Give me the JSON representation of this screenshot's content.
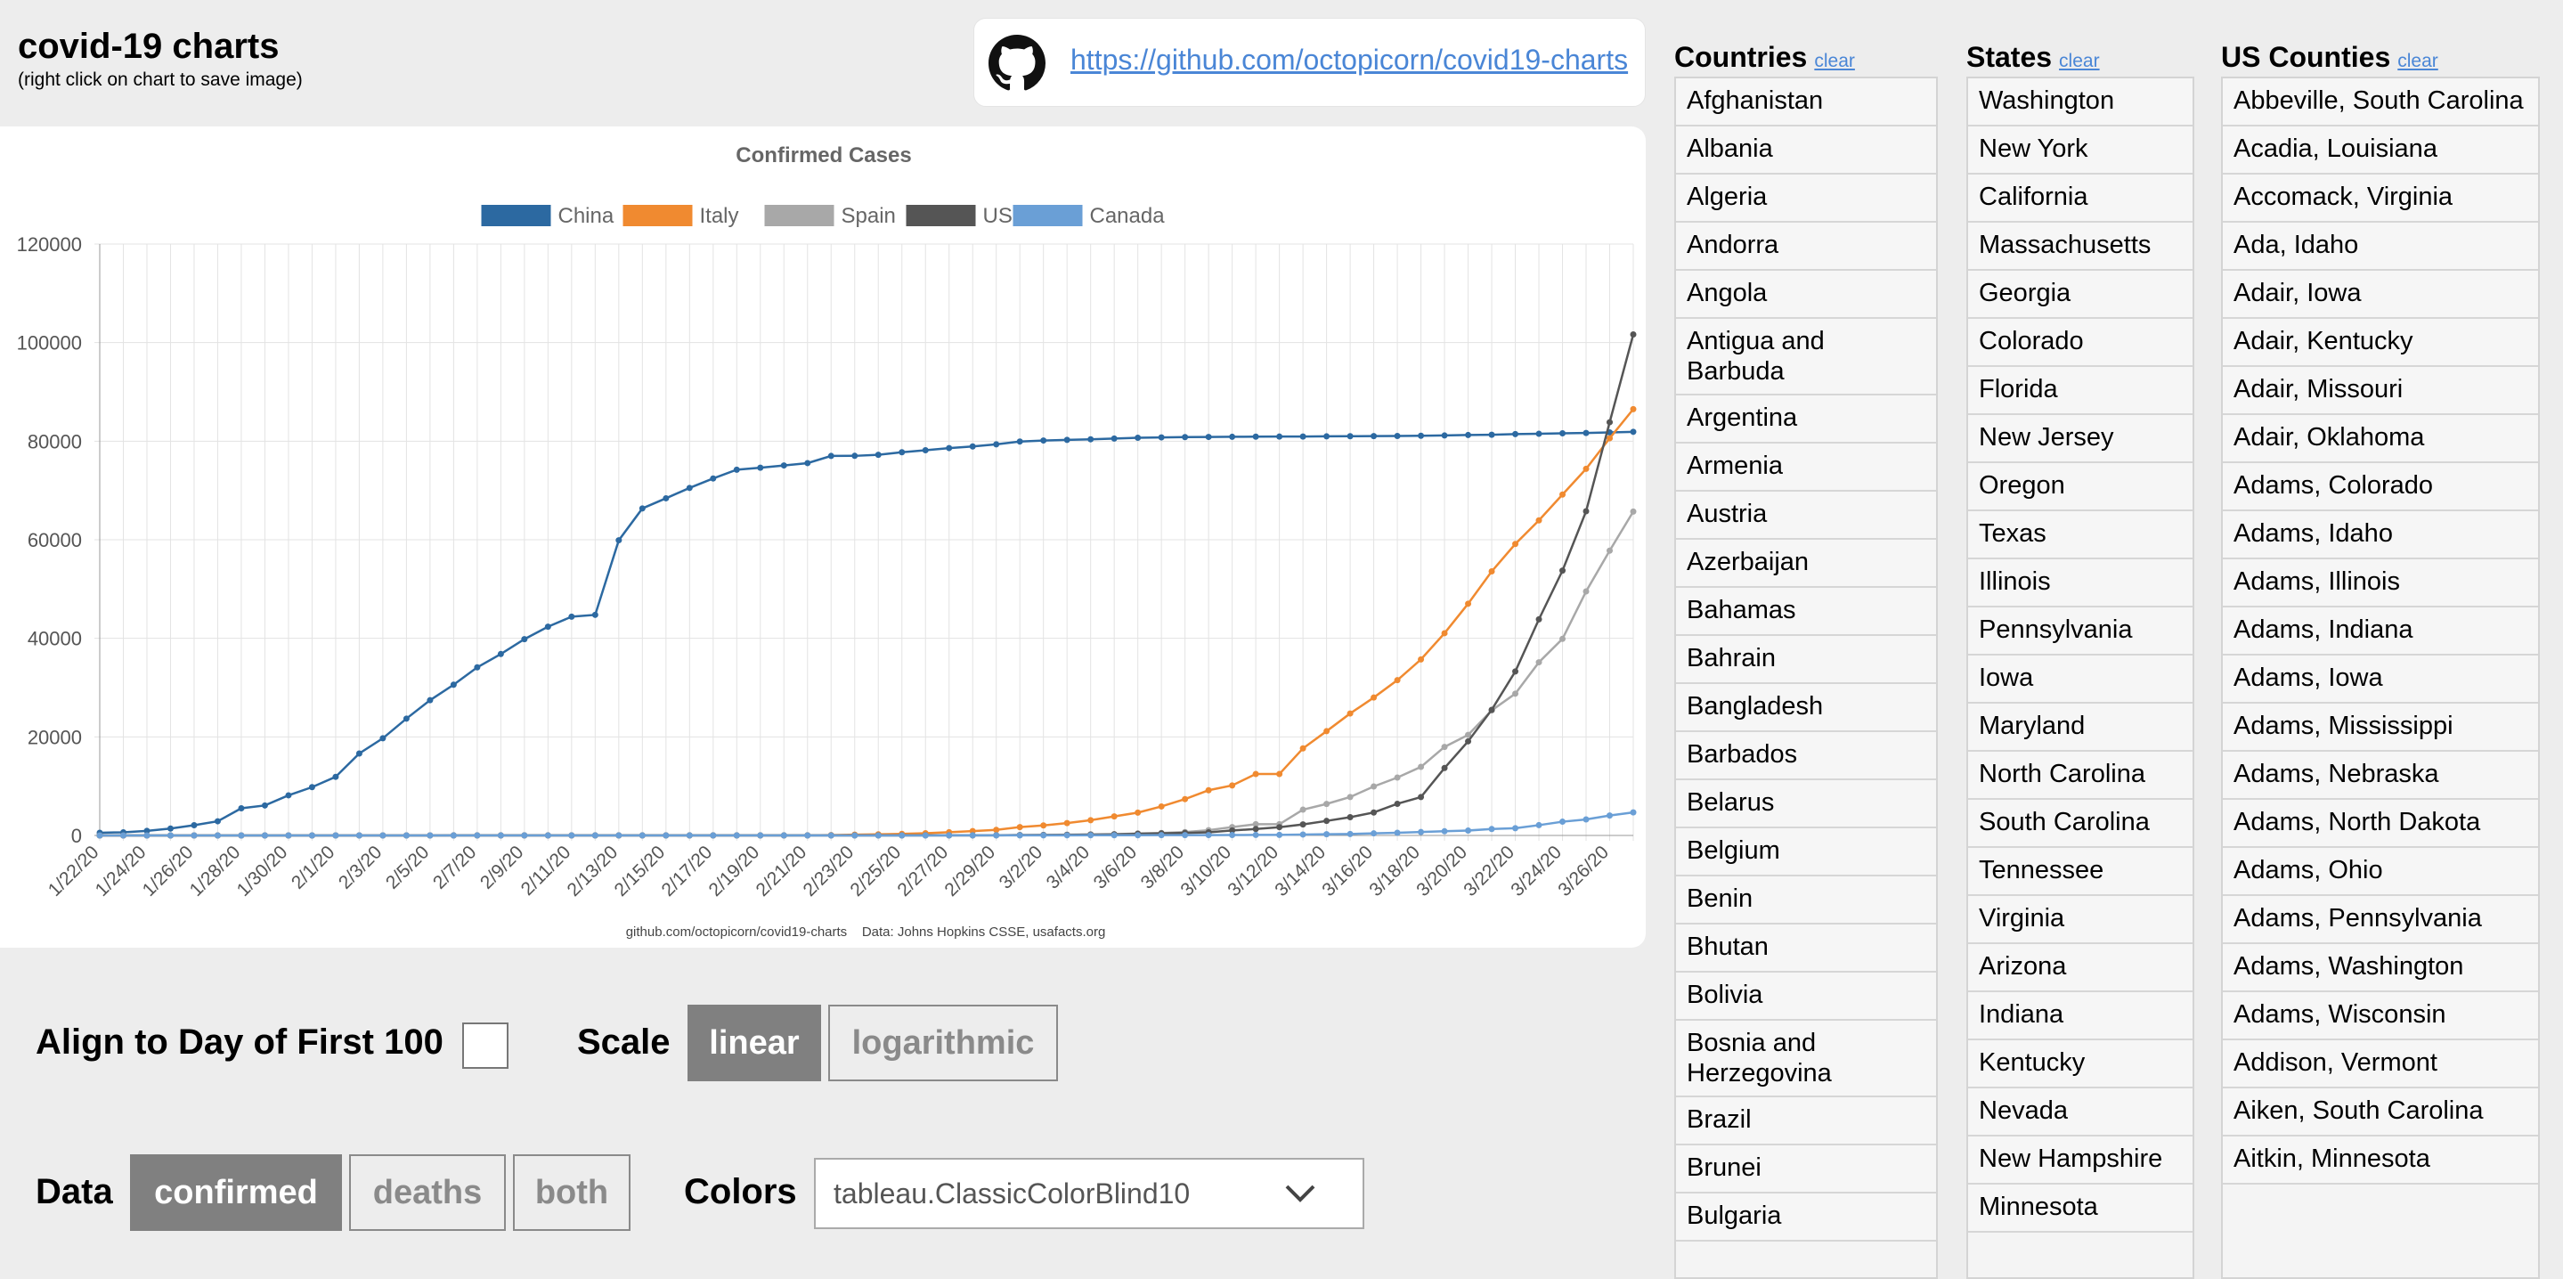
{
  "header": {
    "title": "covid-19 charts",
    "subtitle": "(right click on chart to save image)",
    "github_icon": "github-icon",
    "repo_link": "https://github.com/octopicorn/covid19-charts"
  },
  "chart_data": {
    "type": "line",
    "title": "Confirmed Cases",
    "footer": "github.com/octopicorn/covid19-charts    Data: Johns Hopkins CSSE, usafacts.org",
    "ylim": [
      0,
      120000
    ],
    "yticks": [
      "120000",
      "100000",
      "80000",
      "60000",
      "40000",
      "20000",
      "0"
    ],
    "grid": true,
    "legend_position": "top",
    "x": [
      "1/22/20",
      "1/23/20",
      "1/24/20",
      "1/25/20",
      "1/26/20",
      "1/27/20",
      "1/28/20",
      "1/29/20",
      "1/30/20",
      "1/31/20",
      "2/1/20",
      "2/2/20",
      "2/3/20",
      "2/4/20",
      "2/5/20",
      "2/6/20",
      "2/7/20",
      "2/8/20",
      "2/9/20",
      "2/10/20",
      "2/11/20",
      "2/12/20",
      "2/13/20",
      "2/14/20",
      "2/15/20",
      "2/16/20",
      "2/17/20",
      "2/18/20",
      "2/19/20",
      "2/20/20",
      "2/21/20",
      "2/22/20",
      "2/23/20",
      "2/24/20",
      "2/25/20",
      "2/26/20",
      "2/27/20",
      "2/28/20",
      "2/29/20",
      "3/1/20",
      "3/2/20",
      "3/3/20",
      "3/4/20",
      "3/5/20",
      "3/6/20",
      "3/7/20",
      "3/8/20",
      "3/9/20",
      "3/10/20",
      "3/11/20",
      "3/12/20",
      "3/13/20",
      "3/14/20",
      "3/15/20",
      "3/16/20",
      "3/17/20",
      "3/18/20",
      "3/19/20",
      "3/20/20",
      "3/21/20",
      "3/22/20",
      "3/23/20",
      "3/24/20",
      "3/25/20",
      "3/26/20",
      "3/27/20"
    ],
    "xtick_labels": [
      "1/22/20",
      "1/24/20",
      "1/26/20",
      "1/28/20",
      "1/30/20",
      "2/1/20",
      "2/3/20",
      "2/5/20",
      "2/7/20",
      "2/9/20",
      "2/11/20",
      "2/13/20",
      "2/15/20",
      "2/17/20",
      "2/19/20",
      "2/21/20",
      "2/23/20",
      "2/25/20",
      "2/27/20",
      "2/29/20",
      "3/2/20",
      "3/4/20",
      "3/6/20",
      "3/8/20",
      "3/10/20",
      "3/12/20",
      "3/14/20",
      "3/16/20",
      "3/18/20",
      "3/20/20",
      "3/22/20",
      "3/24/20",
      "3/26/20"
    ],
    "series": [
      {
        "name": "China",
        "color": "#2c69a1",
        "values": [
          548,
          643,
          920,
          1406,
          2075,
          2877,
          5509,
          6087,
          8141,
          9802,
          11891,
          16630,
          19716,
          23707,
          27440,
          30587,
          34110,
          36814,
          39829,
          42354,
          44386,
          44759,
          59895,
          66358,
          68413,
          70513,
          72434,
          74211,
          74619,
          75077,
          75550,
          77001,
          77022,
          77241,
          77754,
          78166,
          78600,
          78928,
          79356,
          79932,
          80136,
          80261,
          80386,
          80537,
          80690,
          80770,
          80823,
          80860,
          80887,
          80921,
          80932,
          80945,
          80977,
          81003,
          81033,
          81058,
          81102,
          81156,
          81250,
          81305,
          81435,
          81498,
          81591,
          81661,
          81782,
          81897
        ]
      },
      {
        "name": "Italy",
        "color": "#f08a30",
        "values": [
          0,
          0,
          0,
          0,
          0,
          0,
          0,
          0,
          0,
          2,
          2,
          2,
          2,
          2,
          2,
          2,
          3,
          3,
          3,
          3,
          3,
          3,
          3,
          3,
          3,
          3,
          3,
          3,
          3,
          3,
          20,
          62,
          155,
          229,
          322,
          453,
          655,
          888,
          1128,
          1694,
          2036,
          2502,
          3089,
          3858,
          4636,
          5883,
          7375,
          9172,
          10149,
          12462,
          12462,
          17660,
          21157,
          24747,
          27980,
          31506,
          35713,
          41035,
          47021,
          53578,
          59138,
          63927,
          69176,
          74386,
          80589,
          86498
        ]
      },
      {
        "name": "Spain",
        "color": "#a8a8a8",
        "values": [
          0,
          0,
          0,
          0,
          0,
          0,
          0,
          0,
          0,
          0,
          1,
          1,
          1,
          1,
          1,
          1,
          1,
          1,
          2,
          2,
          2,
          2,
          2,
          2,
          2,
          2,
          2,
          2,
          2,
          2,
          2,
          2,
          2,
          2,
          6,
          13,
          15,
          32,
          45,
          84,
          120,
          165,
          222,
          259,
          400,
          500,
          673,
          1073,
          1695,
          2277,
          2277,
          5232,
          6391,
          7798,
          9942,
          11748,
          13910,
          17963,
          20410,
          25374,
          28768,
          35136,
          39885,
          49515,
          57786,
          65719
        ]
      },
      {
        "name": "US",
        "color": "#555555",
        "values": [
          1,
          1,
          2,
          2,
          5,
          5,
          5,
          5,
          5,
          6,
          8,
          8,
          11,
          11,
          11,
          12,
          12,
          12,
          12,
          12,
          13,
          13,
          14,
          14,
          14,
          14,
          14,
          14,
          14,
          14,
          14,
          14,
          14,
          14,
          14,
          14,
          14,
          15,
          30,
          70,
          100,
          120,
          160,
          230,
          330,
          420,
          530,
          630,
          1020,
          1300,
          1680,
          2240,
          2950,
          3700,
          4660,
          6420,
          7790,
          13680,
          19100,
          25490,
          33280,
          43850,
          53740,
          65780,
          83840,
          101660
        ]
      },
      {
        "name": "Canada",
        "color": "#6a9fd6",
        "values": [
          0,
          0,
          0,
          0,
          1,
          1,
          2,
          2,
          3,
          4,
          4,
          4,
          4,
          4,
          5,
          5,
          7,
          7,
          7,
          7,
          7,
          7,
          7,
          7,
          7,
          7,
          8,
          8,
          8,
          8,
          8,
          9,
          9,
          9,
          11,
          11,
          14,
          20,
          20,
          24,
          27,
          30,
          34,
          45,
          51,
          57,
          62,
          77,
          93,
          103,
          117,
          192,
          250,
          300,
          420,
          540,
          690,
          850,
          1000,
          1300,
          1470,
          2090,
          2790,
          3250,
          4040,
          4680
        ]
      }
    ]
  },
  "controls": {
    "align_label": "Align to Day of First 100",
    "scale_label": "Scale",
    "scale_linear": "linear",
    "scale_log": "logarithmic",
    "data_label": "Data",
    "data_confirmed": "confirmed",
    "data_deaths": "deaths",
    "data_both": "both",
    "colors_label": "Colors",
    "colors_value": "tableau.ClassicColorBlind10",
    "chevron_icon": "chevron-down-icon"
  },
  "countries": {
    "title": "Countries",
    "clear": "clear",
    "items": [
      "Afghanistan",
      "Albania",
      "Algeria",
      "Andorra",
      "Angola",
      "Antigua and Barbuda",
      "Argentina",
      "Armenia",
      "Austria",
      "Azerbaijan",
      "Bahamas",
      "Bahrain",
      "Bangladesh",
      "Barbados",
      "Belarus",
      "Belgium",
      "Benin",
      "Bhutan",
      "Bolivia",
      "Bosnia and Herzegovina",
      "Brazil",
      "Brunei",
      "Bulgaria"
    ]
  },
  "states": {
    "title": "States",
    "clear": "clear",
    "items": [
      "Washington",
      "New York",
      "California",
      "Massachusetts",
      "Georgia",
      "Colorado",
      "Florida",
      "New Jersey",
      "Oregon",
      "Texas",
      "Illinois",
      "Pennsylvania",
      "Iowa",
      "Maryland",
      "North Carolina",
      "South Carolina",
      "Tennessee",
      "Virginia",
      "Arizona",
      "Indiana",
      "Kentucky",
      "Nevada",
      "New Hampshire",
      "Minnesota"
    ]
  },
  "counties": {
    "title": "US Counties",
    "clear": "clear",
    "items": [
      "Abbeville, South Carolina",
      "Acadia, Louisiana",
      "Accomack, Virginia",
      "Ada, Idaho",
      "Adair, Iowa",
      "Adair, Kentucky",
      "Adair, Missouri",
      "Adair, Oklahoma",
      "Adams, Colorado",
      "Adams, Idaho",
      "Adams, Illinois",
      "Adams, Indiana",
      "Adams, Iowa",
      "Adams, Mississippi",
      "Adams, Nebraska",
      "Adams, North Dakota",
      "Adams, Ohio",
      "Adams, Pennsylvania",
      "Adams, Washington",
      "Adams, Wisconsin",
      "Addison, Vermont",
      "Aiken, South Carolina",
      "Aitkin, Minnesota"
    ]
  }
}
